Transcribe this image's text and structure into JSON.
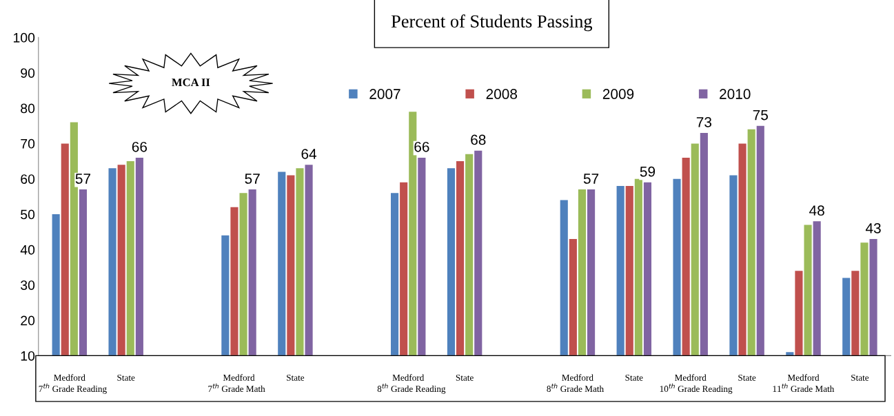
{
  "chart_data": {
    "type": "bar",
    "title": "Percent of Students Passing",
    "categories": [
      "Medford",
      "State",
      null,
      "Medford",
      "State",
      null,
      "Medford",
      "State",
      null,
      "Medford",
      "State",
      "Medford",
      "State",
      "Medford",
      "State"
    ],
    "series": [
      {
        "name": "2007",
        "color": "#4f81bd",
        "values": [
          50,
          63,
          null,
          44,
          62,
          null,
          56,
          63,
          null,
          54,
          58,
          60,
          61,
          11,
          32
        ]
      },
      {
        "name": "2008",
        "color": "#c0504d",
        "values": [
          70,
          64,
          null,
          52,
          61,
          null,
          59,
          65,
          null,
          43,
          58,
          66,
          70,
          34,
          34
        ]
      },
      {
        "name": "2009",
        "color": "#9bbb59",
        "values": [
          76,
          65,
          null,
          56,
          63,
          null,
          79,
          67,
          null,
          57,
          60,
          70,
          74,
          47,
          42
        ]
      },
      {
        "name": "2010",
        "color": "#8064a2",
        "values": [
          57,
          66,
          null,
          57,
          64,
          null,
          66,
          68,
          null,
          57,
          59,
          73,
          75,
          48,
          43
        ],
        "value_labels": [
          "57",
          "66",
          null,
          "57",
          "64",
          null,
          "66",
          "68",
          null,
          "57",
          "59",
          "73",
          "75",
          "48",
          "43"
        ]
      }
    ],
    "ylim": [
      10,
      100
    ],
    "yticks": [
      10,
      20,
      30,
      40,
      50,
      60,
      70,
      80,
      90,
      100
    ],
    "grid": false,
    "legend": "top",
    "annotations": [
      "MCA II",
      "7$^{th}$ Grade Reading",
      "7$^{th}$ Grade Math",
      "8$^{th}$ Grade Reading",
      "8$^{th}$ Grade Math",
      "10$^{th}$ Grade Reading",
      "11$^{th}$ Grade Math"
    ]
  }
}
